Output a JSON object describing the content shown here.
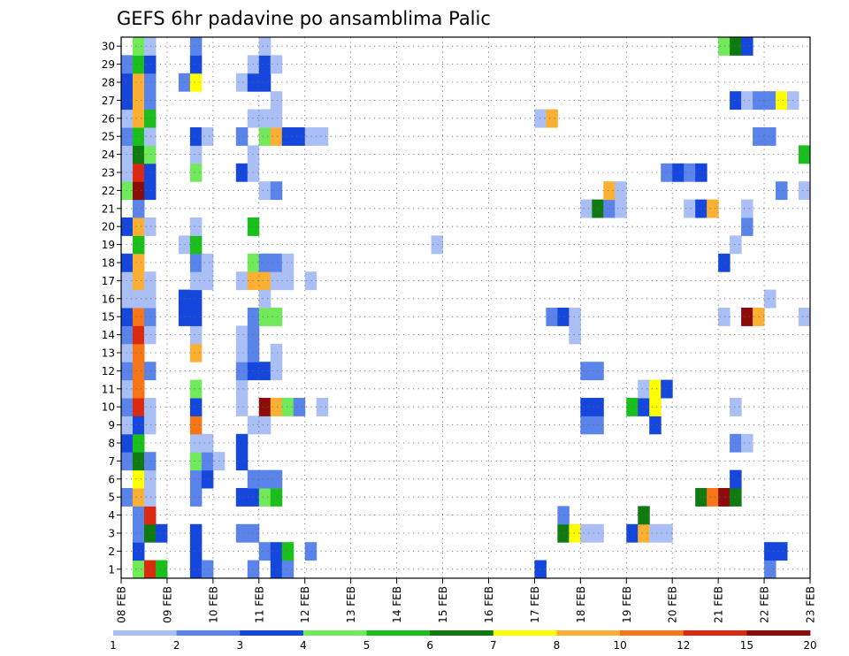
{
  "chart_data": {
    "type": "heatmap",
    "title": "GEFS 6hr padavine po ansamblima Palic",
    "xlabel": "",
    "ylabel": "",
    "x_tick_labels": [
      "08 FEB",
      "09 FEB",
      "10 FEB",
      "11 FEB",
      "12 FEB",
      "13 FEB",
      "14 FEB",
      "15 FEB",
      "16 FEB",
      "17 FEB",
      "18 FEB",
      "19 FEB",
      "20 FEB",
      "21 FEB",
      "22 FEB",
      "23 FEB"
    ],
    "y_tick_labels": [
      "1",
      "2",
      "3",
      "4",
      "5",
      "6",
      "7",
      "8",
      "9",
      "10",
      "11",
      "12",
      "13",
      "14",
      "15",
      "16",
      "17",
      "18",
      "19",
      "20",
      "21",
      "22",
      "23",
      "24",
      "25",
      "26",
      "27",
      "28",
      "29",
      "30"
    ],
    "xlim": [
      0,
      60
    ],
    "ylim": [
      0.5,
      30.5
    ],
    "grid": true,
    "colorbar": {
      "levels": [
        "1",
        "2",
        "3",
        "4",
        "5",
        "6",
        "7",
        "8",
        "10",
        "12",
        "15",
        "20"
      ],
      "colors": [
        "#aabff5",
        "#5b84ea",
        "#1547dc",
        "#70ea5a",
        "#1bbf1b",
        "#0f7a0f",
        "#ffff00",
        "#fbb033",
        "#f67618",
        "#dc2a11",
        "#8c0c0c"
      ]
    },
    "cells": [
      [
        1,
        1,
        3
      ],
      [
        1,
        2,
        9
      ],
      [
        1,
        3,
        4
      ],
      [
        1,
        6,
        2
      ],
      [
        1,
        7,
        1
      ],
      [
        1,
        11,
        1
      ],
      [
        1,
        13,
        2
      ],
      [
        1,
        14,
        1
      ],
      [
        1,
        36,
        2
      ],
      [
        1,
        56,
        1
      ],
      [
        2,
        1,
        2
      ],
      [
        2,
        6,
        2
      ],
      [
        2,
        12,
        1
      ],
      [
        2,
        13,
        2
      ],
      [
        2,
        14,
        4
      ],
      [
        2,
        16,
        1
      ],
      [
        2,
        56,
        2
      ],
      [
        2,
        57,
        2
      ],
      [
        3,
        1,
        1
      ],
      [
        3,
        2,
        5
      ],
      [
        3,
        3,
        2
      ],
      [
        3,
        6,
        2
      ],
      [
        3,
        10,
        1
      ],
      [
        3,
        11,
        1
      ],
      [
        3,
        38,
        5
      ],
      [
        3,
        39,
        6
      ],
      [
        3,
        40,
        0
      ],
      [
        3,
        41,
        0
      ],
      [
        3,
        44,
        2
      ],
      [
        3,
        45,
        7
      ],
      [
        3,
        46,
        0
      ],
      [
        3,
        47,
        0
      ],
      [
        4,
        1,
        1
      ],
      [
        4,
        2,
        9
      ],
      [
        4,
        38,
        1
      ],
      [
        4,
        45,
        5
      ],
      [
        5,
        0,
        1
      ],
      [
        5,
        1,
        7
      ],
      [
        5,
        2,
        0
      ],
      [
        5,
        6,
        1
      ],
      [
        5,
        10,
        2
      ],
      [
        5,
        11,
        2
      ],
      [
        5,
        12,
        3
      ],
      [
        5,
        13,
        4
      ],
      [
        5,
        50,
        5
      ],
      [
        5,
        51,
        8
      ],
      [
        5,
        52,
        10
      ],
      [
        5,
        53,
        5
      ],
      [
        6,
        1,
        6
      ],
      [
        6,
        2,
        0
      ],
      [
        6,
        6,
        1
      ],
      [
        6,
        7,
        2
      ],
      [
        6,
        11,
        1
      ],
      [
        6,
        12,
        1
      ],
      [
        6,
        13,
        1
      ],
      [
        6,
        53,
        2
      ],
      [
        7,
        0,
        1
      ],
      [
        7,
        1,
        5
      ],
      [
        7,
        2,
        1
      ],
      [
        7,
        6,
        3
      ],
      [
        7,
        7,
        1
      ],
      [
        7,
        8,
        0
      ],
      [
        7,
        10,
        2
      ],
      [
        8,
        0,
        2
      ],
      [
        8,
        1,
        4
      ],
      [
        8,
        6,
        0
      ],
      [
        8,
        7,
        0
      ],
      [
        8,
        10,
        2
      ],
      [
        8,
        53,
        1
      ],
      [
        8,
        54,
        0
      ],
      [
        9,
        0,
        0
      ],
      [
        9,
        1,
        2
      ],
      [
        9,
        2,
        0
      ],
      [
        9,
        6,
        8
      ],
      [
        9,
        11,
        0
      ],
      [
        9,
        12,
        0
      ],
      [
        9,
        40,
        1
      ],
      [
        9,
        41,
        1
      ],
      [
        9,
        46,
        2
      ],
      [
        10,
        0,
        1
      ],
      [
        10,
        1,
        9
      ],
      [
        10,
        2,
        0
      ],
      [
        10,
        6,
        2
      ],
      [
        10,
        10,
        0
      ],
      [
        10,
        12,
        10
      ],
      [
        10,
        13,
        7
      ],
      [
        10,
        14,
        3
      ],
      [
        10,
        15,
        1
      ],
      [
        10,
        17,
        0
      ],
      [
        10,
        40,
        2
      ],
      [
        10,
        41,
        2
      ],
      [
        10,
        44,
        4
      ],
      [
        10,
        45,
        2
      ],
      [
        10,
        46,
        6
      ],
      [
        10,
        53,
        0
      ],
      [
        11,
        0,
        0
      ],
      [
        11,
        1,
        8
      ],
      [
        11,
        6,
        3
      ],
      [
        11,
        10,
        0
      ],
      [
        11,
        45,
        0
      ],
      [
        11,
        46,
        6
      ],
      [
        11,
        47,
        2
      ],
      [
        12,
        0,
        1
      ],
      [
        12,
        1,
        8
      ],
      [
        12,
        2,
        1
      ],
      [
        12,
        10,
        1
      ],
      [
        12,
        11,
        2
      ],
      [
        12,
        12,
        2
      ],
      [
        12,
        13,
        0
      ],
      [
        12,
        40,
        1
      ],
      [
        12,
        41,
        1
      ],
      [
        13,
        0,
        0
      ],
      [
        13,
        1,
        8
      ],
      [
        13,
        6,
        7
      ],
      [
        13,
        10,
        0
      ],
      [
        13,
        11,
        1
      ],
      [
        13,
        13,
        0
      ],
      [
        14,
        0,
        1
      ],
      [
        14,
        1,
        9
      ],
      [
        14,
        2,
        0
      ],
      [
        14,
        6,
        0
      ],
      [
        14,
        10,
        0
      ],
      [
        14,
        11,
        1
      ],
      [
        14,
        39,
        0
      ],
      [
        15,
        0,
        2
      ],
      [
        15,
        1,
        8
      ],
      [
        15,
        2,
        1
      ],
      [
        15,
        5,
        2
      ],
      [
        15,
        6,
        2
      ],
      [
        15,
        11,
        1
      ],
      [
        15,
        12,
        3
      ],
      [
        15,
        13,
        3
      ],
      [
        15,
        37,
        1
      ],
      [
        15,
        38,
        2
      ],
      [
        15,
        39,
        0
      ],
      [
        15,
        52,
        0
      ],
      [
        15,
        54,
        10
      ],
      [
        15,
        55,
        7
      ],
      [
        15,
        59,
        0
      ],
      [
        16,
        0,
        0
      ],
      [
        16,
        1,
        0
      ],
      [
        16,
        2,
        0
      ],
      [
        16,
        5,
        2
      ],
      [
        16,
        6,
        2
      ],
      [
        16,
        12,
        0
      ],
      [
        16,
        56,
        0
      ],
      [
        17,
        0,
        0
      ],
      [
        17,
        1,
        7
      ],
      [
        17,
        2,
        0
      ],
      [
        17,
        6,
        0
      ],
      [
        17,
        7,
        0
      ],
      [
        17,
        10,
        0
      ],
      [
        17,
        11,
        7
      ],
      [
        17,
        12,
        7
      ],
      [
        17,
        13,
        0
      ],
      [
        17,
        14,
        0
      ],
      [
        17,
        16,
        0
      ],
      [
        18,
        0,
        2
      ],
      [
        18,
        1,
        7
      ],
      [
        18,
        6,
        1
      ],
      [
        18,
        7,
        0
      ],
      [
        18,
        11,
        3
      ],
      [
        18,
        12,
        1
      ],
      [
        18,
        13,
        1
      ],
      [
        18,
        14,
        0
      ],
      [
        18,
        52,
        2
      ],
      [
        19,
        1,
        4
      ],
      [
        19,
        5,
        0
      ],
      [
        19,
        6,
        4
      ],
      [
        19,
        27,
        0
      ],
      [
        19,
        53,
        0
      ],
      [
        20,
        0,
        2
      ],
      [
        20,
        1,
        7
      ],
      [
        20,
        2,
        0
      ],
      [
        20,
        6,
        0
      ],
      [
        20,
        11,
        4
      ],
      [
        20,
        54,
        1
      ],
      [
        21,
        1,
        1
      ],
      [
        21,
        40,
        0
      ],
      [
        21,
        41,
        5
      ],
      [
        21,
        42,
        1
      ],
      [
        21,
        43,
        0
      ],
      [
        21,
        49,
        0
      ],
      [
        21,
        50,
        2
      ],
      [
        21,
        51,
        7
      ],
      [
        21,
        54,
        0
      ],
      [
        22,
        0,
        3
      ],
      [
        22,
        1,
        10
      ],
      [
        22,
        2,
        2
      ],
      [
        22,
        12,
        0
      ],
      [
        22,
        13,
        1
      ],
      [
        22,
        42,
        7
      ],
      [
        22,
        43,
        0
      ],
      [
        22,
        57,
        1
      ],
      [
        22,
        59,
        0
      ],
      [
        23,
        0,
        0
      ],
      [
        23,
        1,
        9
      ],
      [
        23,
        2,
        2
      ],
      [
        23,
        6,
        3
      ],
      [
        23,
        10,
        2
      ],
      [
        23,
        11,
        0
      ],
      [
        23,
        47,
        1
      ],
      [
        23,
        48,
        2
      ],
      [
        23,
        49,
        1
      ],
      [
        23,
        50,
        2
      ],
      [
        24,
        0,
        0
      ],
      [
        24,
        1,
        5
      ],
      [
        24,
        2,
        3
      ],
      [
        24,
        6,
        0
      ],
      [
        24,
        11,
        0
      ],
      [
        24,
        59,
        4
      ],
      [
        25,
        0,
        1
      ],
      [
        25,
        1,
        4
      ],
      [
        25,
        2,
        0
      ],
      [
        25,
        6,
        2
      ],
      [
        25,
        7,
        0
      ],
      [
        25,
        10,
        1
      ],
      [
        25,
        12,
        3
      ],
      [
        25,
        13,
        7
      ],
      [
        25,
        14,
        2
      ],
      [
        25,
        15,
        2
      ],
      [
        25,
        16,
        0
      ],
      [
        25,
        17,
        0
      ],
      [
        25,
        55,
        1
      ],
      [
        25,
        56,
        1
      ],
      [
        26,
        0,
        0
      ],
      [
        26,
        1,
        7
      ],
      [
        26,
        2,
        4
      ],
      [
        26,
        11,
        0
      ],
      [
        26,
        12,
        0
      ],
      [
        26,
        13,
        0
      ],
      [
        26,
        36,
        0
      ],
      [
        26,
        37,
        7
      ],
      [
        27,
        0,
        2
      ],
      [
        27,
        1,
        7
      ],
      [
        27,
        2,
        1
      ],
      [
        27,
        13,
        0
      ],
      [
        27,
        53,
        2
      ],
      [
        27,
        54,
        0
      ],
      [
        27,
        55,
        1
      ],
      [
        27,
        56,
        1
      ],
      [
        27,
        57,
        6
      ],
      [
        27,
        58,
        0
      ],
      [
        28,
        0,
        2
      ],
      [
        28,
        1,
        7
      ],
      [
        28,
        2,
        1
      ],
      [
        28,
        5,
        1
      ],
      [
        28,
        6,
        6
      ],
      [
        28,
        10,
        0
      ],
      [
        28,
        11,
        2
      ],
      [
        28,
        12,
        2
      ],
      [
        29,
        0,
        1
      ],
      [
        29,
        1,
        4
      ],
      [
        29,
        2,
        2
      ],
      [
        29,
        6,
        2
      ],
      [
        29,
        11,
        0
      ],
      [
        29,
        12,
        2
      ],
      [
        29,
        13,
        0
      ],
      [
        30,
        1,
        3
      ],
      [
        30,
        2,
        0
      ],
      [
        30,
        6,
        1
      ],
      [
        30,
        12,
        0
      ],
      [
        30,
        52,
        3
      ],
      [
        30,
        53,
        5
      ],
      [
        30,
        54,
        2
      ]
    ]
  }
}
